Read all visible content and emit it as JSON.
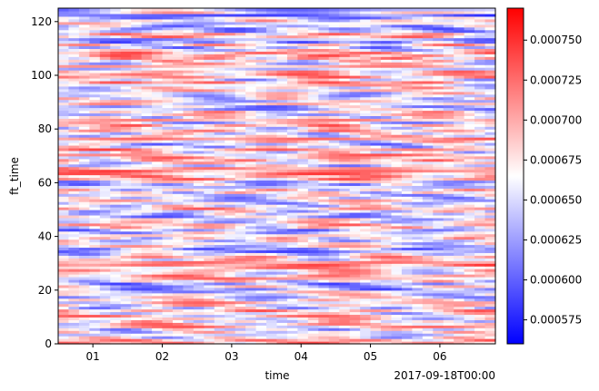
{
  "chart_data": {
    "type": "heatmap",
    "title": "",
    "xlabel": "time",
    "ylabel": "ft_time",
    "x_offset_label": "2017-09-18T00:00",
    "x_ticks": [
      "01",
      "02",
      "03",
      "04",
      "05",
      "06"
    ],
    "x_range": [
      0.5,
      6.8
    ],
    "y_ticks": [
      0,
      20,
      40,
      60,
      80,
      100,
      120
    ],
    "ylim": [
      0,
      125
    ],
    "colormap": "bwr",
    "colormap_colors": [
      "#0000ff",
      "#ffffff",
      "#ff0000"
    ],
    "value_range": [
      0.00056,
      0.00077
    ],
    "colorbar_ticks": [
      "0.000575",
      "0.000600",
      "0.000625",
      "0.000650",
      "0.000675",
      "0.000700",
      "0.000725",
      "0.000750"
    ],
    "colorbar_tick_values": [
      0.000575,
      0.0006,
      0.000625,
      0.00065,
      0.000675,
      0.0007,
      0.000725,
      0.00075
    ],
    "grid": false
  }
}
